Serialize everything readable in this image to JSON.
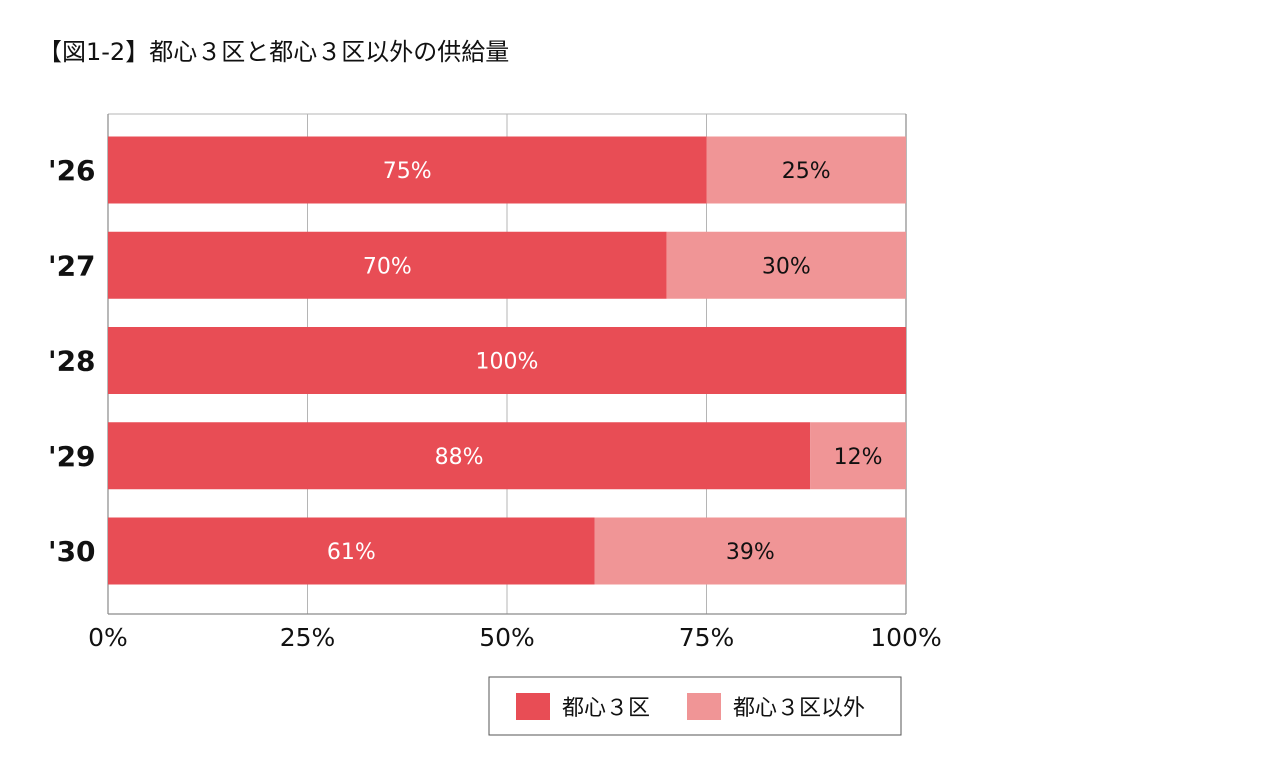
{
  "chart_data": {
    "type": "bar",
    "orientation": "horizontal",
    "stacked": true,
    "title": "【図1-2】都心３区と都心３区以外の供給量",
    "categories": [
      "'26",
      "'27",
      "'28",
      "'29",
      "'30"
    ],
    "series": [
      {
        "name": "都心３区",
        "values": [
          75,
          70,
          100,
          88,
          61
        ],
        "labels": [
          "75%",
          "70%",
          "100%",
          "88%",
          "61%"
        ],
        "color": "#e84d55",
        "label_color": "#ffffff"
      },
      {
        "name": "都心３区以外",
        "values": [
          25,
          30,
          0,
          12,
          39
        ],
        "labels": [
          "25%",
          "30%",
          "",
          "12%",
          "39%"
        ],
        "color": "#f09596",
        "label_color": "#111111"
      }
    ],
    "xlim": [
      0,
      100
    ],
    "xticks": [
      0,
      25,
      50,
      75,
      100
    ],
    "xtick_labels": [
      "0%",
      "25%",
      "50%",
      "75%",
      "100%"
    ],
    "grid": true,
    "legend_position": "bottom"
  }
}
